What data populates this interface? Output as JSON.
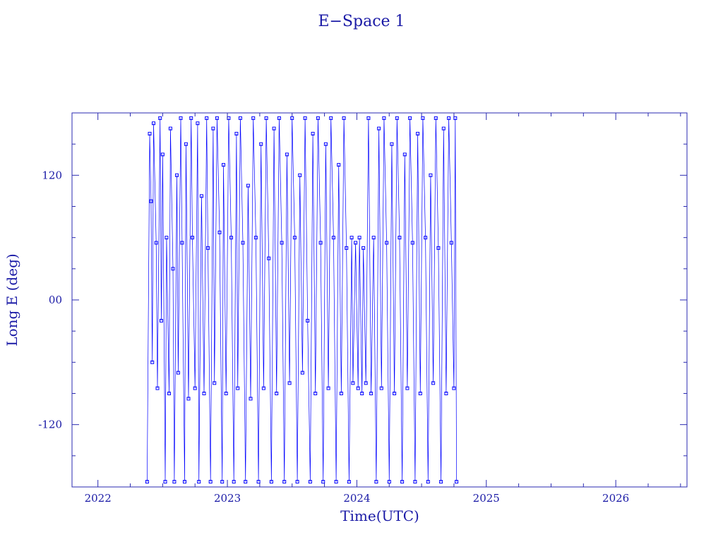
{
  "chart_data": {
    "type": "line",
    "title": "E−Space 1",
    "xlabel": "Time(UTC)",
    "ylabel": "Long E (deg)",
    "xlim": [
      2021.8,
      2026.55
    ],
    "ylim": [
      -180,
      180
    ],
    "x_ticks": [
      {
        "value": 2022,
        "label": "2022"
      },
      {
        "value": 2023,
        "label": "2023"
      },
      {
        "value": 2024,
        "label": "2024"
      },
      {
        "value": 2025,
        "label": "2025"
      },
      {
        "value": 2026,
        "label": "2026"
      }
    ],
    "y_ticks": [
      {
        "value": 120,
        "label": "120"
      },
      {
        "value": 0,
        "label": "00"
      },
      {
        "value": -120,
        "label": "-120"
      }
    ],
    "grid": false,
    "colors": {
      "series": "#0000ff",
      "axes": "#2a2ab0",
      "text": "#1a1aa6"
    },
    "series": [
      {
        "marker": "square",
        "points": [
          [
            2022.38,
            -175
          ],
          [
            2022.4,
            160
          ],
          [
            2022.41,
            95
          ],
          [
            2022.42,
            -60
          ],
          [
            2022.43,
            170
          ],
          [
            2022.45,
            55
          ],
          [
            2022.46,
            -85
          ],
          [
            2022.48,
            175
          ],
          [
            2022.49,
            -20
          ],
          [
            2022.5,
            140
          ],
          [
            2022.52,
            -175
          ],
          [
            2022.53,
            60
          ],
          [
            2022.55,
            -90
          ],
          [
            2022.56,
            165
          ],
          [
            2022.58,
            30
          ],
          [
            2022.59,
            -175
          ],
          [
            2022.61,
            120
          ],
          [
            2022.62,
            -70
          ],
          [
            2022.64,
            175
          ],
          [
            2022.65,
            55
          ],
          [
            2022.67,
            -175
          ],
          [
            2022.68,
            150
          ],
          [
            2022.7,
            -95
          ],
          [
            2022.72,
            175
          ],
          [
            2022.73,
            60
          ],
          [
            2022.75,
            -85
          ],
          [
            2022.77,
            170
          ],
          [
            2022.78,
            -175
          ],
          [
            2022.8,
            100
          ],
          [
            2022.82,
            -90
          ],
          [
            2022.84,
            175
          ],
          [
            2022.85,
            50
          ],
          [
            2022.87,
            -175
          ],
          [
            2022.89,
            165
          ],
          [
            2022.9,
            -80
          ],
          [
            2022.92,
            175
          ],
          [
            2022.94,
            65
          ],
          [
            2022.96,
            -175
          ],
          [
            2022.97,
            130
          ],
          [
            2022.99,
            -90
          ],
          [
            2023.01,
            175
          ],
          [
            2023.03,
            60
          ],
          [
            2023.05,
            -175
          ],
          [
            2023.07,
            160
          ],
          [
            2023.08,
            -85
          ],
          [
            2023.1,
            175
          ],
          [
            2023.12,
            55
          ],
          [
            2023.14,
            -175
          ],
          [
            2023.16,
            110
          ],
          [
            2023.18,
            -95
          ],
          [
            2023.2,
            175
          ],
          [
            2023.22,
            60
          ],
          [
            2023.24,
            -175
          ],
          [
            2023.26,
            150
          ],
          [
            2023.28,
            -85
          ],
          [
            2023.3,
            175
          ],
          [
            2023.32,
            40
          ],
          [
            2023.34,
            -175
          ],
          [
            2023.36,
            165
          ],
          [
            2023.38,
            -90
          ],
          [
            2023.4,
            175
          ],
          [
            2023.42,
            55
          ],
          [
            2023.44,
            -175
          ],
          [
            2023.46,
            140
          ],
          [
            2023.48,
            -80
          ],
          [
            2023.5,
            175
          ],
          [
            2023.52,
            60
          ],
          [
            2023.54,
            -175
          ],
          [
            2023.56,
            120
          ],
          [
            2023.58,
            -70
          ],
          [
            2023.6,
            175
          ],
          [
            2023.62,
            -20
          ],
          [
            2023.64,
            -175
          ],
          [
            2023.66,
            160
          ],
          [
            2023.68,
            -90
          ],
          [
            2023.7,
            175
          ],
          [
            2023.72,
            55
          ],
          [
            2023.74,
            -175
          ],
          [
            2023.76,
            150
          ],
          [
            2023.78,
            -85
          ],
          [
            2023.8,
            175
          ],
          [
            2023.82,
            60
          ],
          [
            2023.84,
            -175
          ],
          [
            2023.86,
            130
          ],
          [
            2023.88,
            -90
          ],
          [
            2023.9,
            175
          ],
          [
            2023.92,
            50
          ],
          [
            2023.94,
            -175
          ],
          [
            2023.96,
            60
          ],
          [
            2023.97,
            -80
          ],
          [
            2023.99,
            55
          ],
          [
            2024.01,
            -85
          ],
          [
            2024.02,
            60
          ],
          [
            2024.04,
            -90
          ],
          [
            2024.05,
            50
          ],
          [
            2024.07,
            -80
          ],
          [
            2024.09,
            175
          ],
          [
            2024.11,
            -90
          ],
          [
            2024.13,
            60
          ],
          [
            2024.15,
            -175
          ],
          [
            2024.17,
            165
          ],
          [
            2024.19,
            -85
          ],
          [
            2024.21,
            175
          ],
          [
            2024.23,
            55
          ],
          [
            2024.25,
            -175
          ],
          [
            2024.27,
            150
          ],
          [
            2024.29,
            -90
          ],
          [
            2024.31,
            175
          ],
          [
            2024.33,
            60
          ],
          [
            2024.35,
            -175
          ],
          [
            2024.37,
            140
          ],
          [
            2024.39,
            -85
          ],
          [
            2024.41,
            175
          ],
          [
            2024.43,
            55
          ],
          [
            2024.45,
            -175
          ],
          [
            2024.47,
            160
          ],
          [
            2024.49,
            -90
          ],
          [
            2024.51,
            175
          ],
          [
            2024.53,
            60
          ],
          [
            2024.55,
            -175
          ],
          [
            2024.57,
            120
          ],
          [
            2024.59,
            -80
          ],
          [
            2024.61,
            175
          ],
          [
            2024.63,
            50
          ],
          [
            2024.65,
            -175
          ],
          [
            2024.67,
            165
          ],
          [
            2024.69,
            -90
          ],
          [
            2024.71,
            175
          ],
          [
            2024.73,
            55
          ],
          [
            2024.75,
            -85
          ],
          [
            2024.76,
            175
          ],
          [
            2024.77,
            -175
          ]
        ]
      }
    ]
  }
}
